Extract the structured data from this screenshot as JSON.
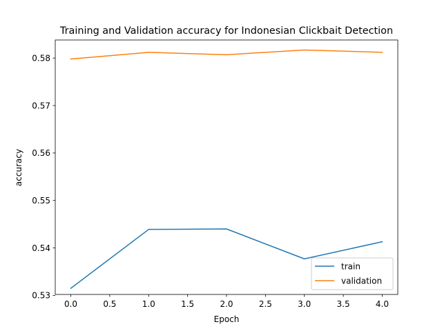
{
  "chart_data": {
    "type": "line",
    "title": "Training and Validation accuracy for Indonesian Clickbait Detection",
    "xlabel": "Epoch",
    "ylabel": "accuracy",
    "xlim": [
      -0.2,
      4.2
    ],
    "ylim": [
      0.5302,
      0.5838
    ],
    "x": [
      0,
      1,
      2,
      3,
      4
    ],
    "xticks": [
      0.0,
      0.5,
      1.0,
      1.5,
      2.0,
      2.5,
      3.0,
      3.5,
      4.0
    ],
    "xtick_labels": [
      "0.0",
      "0.5",
      "1.0",
      "1.5",
      "2.0",
      "2.5",
      "3.0",
      "3.5",
      "4.0"
    ],
    "yticks": [
      0.53,
      0.54,
      0.55,
      0.56,
      0.57,
      0.58
    ],
    "ytick_labels": [
      "0.53",
      "0.54",
      "0.55",
      "0.56",
      "0.57",
      "0.58"
    ],
    "grid": false,
    "legend_position": "lower right",
    "series": [
      {
        "name": "train",
        "color": "#1f77b4",
        "values": [
          0.5315,
          0.5439,
          0.544,
          0.5377,
          0.5413
        ]
      },
      {
        "name": "validation",
        "color": "#ff7f0e",
        "values": [
          0.5798,
          0.5812,
          0.5807,
          0.5817,
          0.5812
        ]
      }
    ]
  }
}
